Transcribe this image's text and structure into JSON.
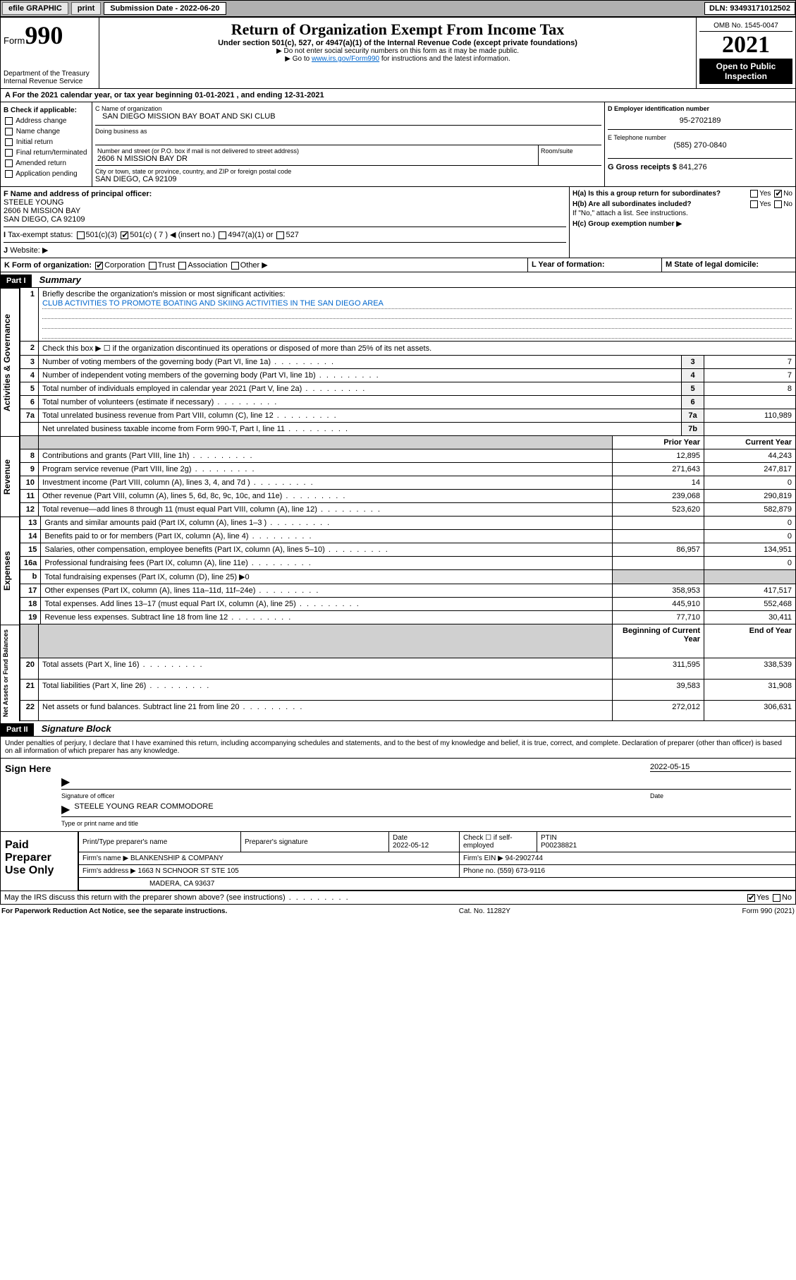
{
  "topbar": {
    "efile": "efile GRAPHIC",
    "print": "print",
    "subdate_lbl": "Submission Date - 2022-06-20",
    "dln": "DLN: 93493171012502"
  },
  "header": {
    "form": "Form",
    "num": "990",
    "dept": "Department of the Treasury",
    "irs": "Internal Revenue Service",
    "title": "Return of Organization Exempt From Income Tax",
    "sub1": "Under section 501(c), 527, or 4947(a)(1) of the Internal Revenue Code (except private foundations)",
    "sub2": "▶ Do not enter social security numbers on this form as it may be made public.",
    "sub3": "▶ Go to ",
    "link": "www.irs.gov/Form990",
    "sub3b": " for instructions and the latest information.",
    "omb": "OMB No. 1545-0047",
    "year": "2021",
    "open": "Open to Public Inspection"
  },
  "period": {
    "text": "For the 2021 calendar year, or tax year beginning 01-01-2021   , and ending 12-31-2021"
  },
  "B": {
    "hdr": "B Check if applicable:",
    "items": [
      "Address change",
      "Name change",
      "Initial return",
      "Final return/terminated",
      "Amended return",
      "Application pending"
    ]
  },
  "C": {
    "lblname": "C Name of organization",
    "name": "SAN DIEGO MISSION BAY BOAT AND SKI CLUB",
    "dba": "Doing business as",
    "lblstreet": "Number and street (or P.O. box if mail is not delivered to street address)",
    "room": "Room/suite",
    "street": "2606 N MISSION BAY DR",
    "lblcity": "City or town, state or province, country, and ZIP or foreign postal code",
    "city": "SAN DIEGO, CA  92109"
  },
  "D": {
    "lbl": "D Employer identification number",
    "val": "95-2702189"
  },
  "E": {
    "lbl": "E Telephone number",
    "val": "(585) 270-0840"
  },
  "G": {
    "lbl": "G Gross receipts $",
    "val": "841,276"
  },
  "F": {
    "lbl": "F  Name and address of principal officer:",
    "name": "STEELE YOUNG",
    "addr1": "2606 N MISSION BAY",
    "addr2": "SAN DIEGO, CA  92109"
  },
  "H": {
    "a": "H(a)  Is this a group return for subordinates?",
    "b": "H(b)  Are all subordinates included?",
    "note": "If \"No,\" attach a list. See instructions.",
    "c": "H(c)  Group exemption number ▶",
    "yes": "Yes",
    "no": "No"
  },
  "I": {
    "lbl": "Tax-exempt status:",
    "o1": "501(c)(3)",
    "o2": "501(c) ( 7 ) ◀ (insert no.)",
    "o3": "4947(a)(1) or",
    "o4": "527"
  },
  "J": {
    "lbl": "Website: ▶"
  },
  "K": {
    "lbl": "K Form of organization:",
    "o1": "Corporation",
    "o2": "Trust",
    "o3": "Association",
    "o4": "Other ▶"
  },
  "L": {
    "lbl": "L Year of formation:"
  },
  "M": {
    "lbl": "M State of legal domicile:"
  },
  "partI": {
    "label": "Part I",
    "title": "Summary"
  },
  "summary": {
    "l1": "Briefly describe the organization's mission or most significant activities:",
    "mission": "CLUB ACTIVITIES TO PROMOTE BOATING AND SKIING ACTIVITIES IN THE SAN DIEGO AREA",
    "l2": "Check this box ▶ ☐  if the organization discontinued its operations or disposed of more than 25% of its net assets.",
    "rows_ag": [
      {
        "n": "3",
        "d": "Number of voting members of the governing body (Part VI, line 1a)",
        "ln": "3",
        "v": "7"
      },
      {
        "n": "4",
        "d": "Number of independent voting members of the governing body (Part VI, line 1b)",
        "ln": "4",
        "v": "7"
      },
      {
        "n": "5",
        "d": "Total number of individuals employed in calendar year 2021 (Part V, line 2a)",
        "ln": "5",
        "v": "8"
      },
      {
        "n": "6",
        "d": "Total number of volunteers (estimate if necessary)",
        "ln": "6",
        "v": ""
      },
      {
        "n": "7a",
        "d": "Total unrelated business revenue from Part VIII, column (C), line 12",
        "ln": "7a",
        "v": "110,989"
      },
      {
        "n": "",
        "d": "Net unrelated business taxable income from Form 990-T, Part I, line 11",
        "ln": "7b",
        "v": ""
      }
    ],
    "hdr_prior": "Prior Year",
    "hdr_curr": "Current Year",
    "rev": [
      {
        "n": "8",
        "d": "Contributions and grants (Part VIII, line 1h)",
        "p": "12,895",
        "c": "44,243"
      },
      {
        "n": "9",
        "d": "Program service revenue (Part VIII, line 2g)",
        "p": "271,643",
        "c": "247,817"
      },
      {
        "n": "10",
        "d": "Investment income (Part VIII, column (A), lines 3, 4, and 7d )",
        "p": "14",
        "c": "0"
      },
      {
        "n": "11",
        "d": "Other revenue (Part VIII, column (A), lines 5, 6d, 8c, 9c, 10c, and 11e)",
        "p": "239,068",
        "c": "290,819"
      },
      {
        "n": "12",
        "d": "Total revenue—add lines 8 through 11 (must equal Part VIII, column (A), line 12)",
        "p": "523,620",
        "c": "582,879"
      }
    ],
    "exp": [
      {
        "n": "13",
        "d": "Grants and similar amounts paid (Part IX, column (A), lines 1–3 )",
        "p": "",
        "c": "0"
      },
      {
        "n": "14",
        "d": "Benefits paid to or for members (Part IX, column (A), line 4)",
        "p": "",
        "c": "0"
      },
      {
        "n": "15",
        "d": "Salaries, other compensation, employee benefits (Part IX, column (A), lines 5–10)",
        "p": "86,957",
        "c": "134,951"
      },
      {
        "n": "16a",
        "d": "Professional fundraising fees (Part IX, column (A), line 11e)",
        "p": "",
        "c": "0"
      },
      {
        "n": "b",
        "d": "Total fundraising expenses (Part IX, column (D), line 25) ▶0",
        "p": "—shade—",
        "c": "—shade—"
      },
      {
        "n": "17",
        "d": "Other expenses (Part IX, column (A), lines 11a–11d, 11f–24e)",
        "p": "358,953",
        "c": "417,517"
      },
      {
        "n": "18",
        "d": "Total expenses. Add lines 13–17 (must equal Part IX, column (A), line 25)",
        "p": "445,910",
        "c": "552,468"
      },
      {
        "n": "19",
        "d": "Revenue less expenses. Subtract line 18 from line 12",
        "p": "77,710",
        "c": "30,411"
      }
    ],
    "hdr_beg": "Beginning of Current Year",
    "hdr_end": "End of Year",
    "na": [
      {
        "n": "20",
        "d": "Total assets (Part X, line 16)",
        "p": "311,595",
        "c": "338,539"
      },
      {
        "n": "21",
        "d": "Total liabilities (Part X, line 26)",
        "p": "39,583",
        "c": "31,908"
      },
      {
        "n": "22",
        "d": "Net assets or fund balances. Subtract line 21 from line 20",
        "p": "272,012",
        "c": "306,631"
      }
    ]
  },
  "partII": {
    "label": "Part II",
    "title": "Signature Block"
  },
  "sig": {
    "decl": "Under penalties of perjury, I declare that I have examined this return, including accompanying schedules and statements, and to the best of my knowledge and belief, it is true, correct, and complete. Declaration of preparer (other than officer) is based on all information of which preparer has any knowledge.",
    "here": "Sign Here",
    "sigoff": "Signature of officer",
    "date": "Date",
    "dateval": "2022-05-15",
    "name": "STEELE YOUNG REAR COMMODORE",
    "nametype": "Type or print name and title"
  },
  "paid": {
    "hdr": "Paid Preparer Use Only",
    "r1": {
      "c1": "Print/Type preparer's name",
      "c2": "Preparer's signature",
      "c3": "Date",
      "c3v": "2022-05-12",
      "c4": "Check ☐ if self-employed",
      "c5": "PTIN",
      "c5v": "P00238821"
    },
    "r2": {
      "c1": "Firm's name     ▶ BLANKENSHIP & COMPANY",
      "c2": "Firm's EIN ▶ 94-2902744"
    },
    "r3": {
      "c1": "Firm's address ▶ 1663 N SCHNOOR ST STE 105",
      "c2": "Phone no. (559) 673-9116"
    },
    "r4": {
      "c1": "MADERA, CA  93637"
    }
  },
  "may": {
    "q": "May the IRS discuss this return with the preparer shown above? (see instructions)",
    "yes": "Yes",
    "no": "No"
  },
  "foot": {
    "l": "For Paperwork Reduction Act Notice, see the separate instructions.",
    "c": "Cat. No. 11282Y",
    "r": "Form 990 (2021)"
  }
}
